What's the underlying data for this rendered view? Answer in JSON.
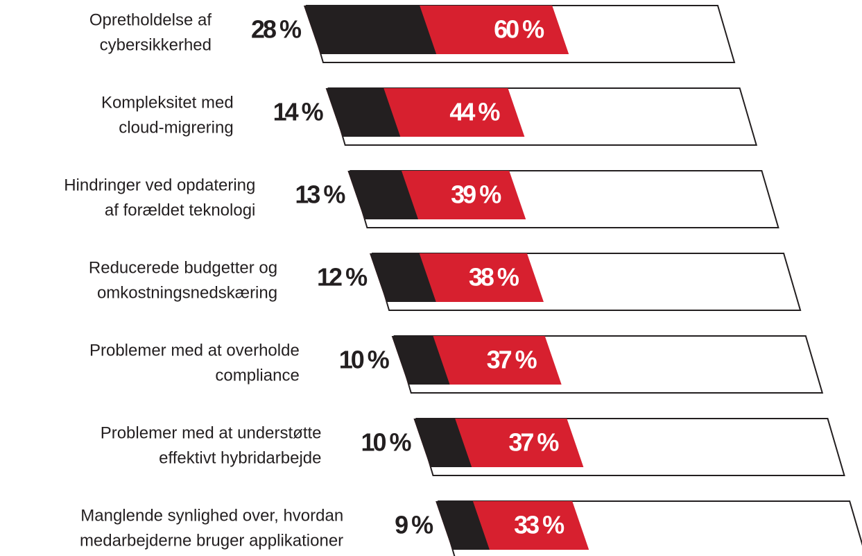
{
  "chart_data": {
    "type": "bar",
    "categories": [
      [
        "Opretholdelse af",
        "cybersikkerhed"
      ],
      [
        "Kompleksitet med",
        "cloud-migrering"
      ],
      [
        "Hindringer ved opdatering",
        "af forældet teknologi"
      ],
      [
        "Reducerede budgetter og",
        "omkostningsnedskæring"
      ],
      [
        "Problemer med at overholde",
        "compliance"
      ],
      [
        "Problemer med at understøtte",
        "effektivt hybridarbejde"
      ],
      [
        "Manglende synlighed over, hvordan",
        "medarbejderne bruger applikationer"
      ]
    ],
    "series": [
      {
        "color": "#d7202f",
        "values": [
          60,
          44,
          39,
          38,
          37,
          37,
          33
        ],
        "value_labels": [
          "60 %",
          "44 %",
          "39 %",
          "38 %",
          "37 %",
          "37 %",
          "33 %"
        ]
      },
      {
        "color": "#231f20",
        "values": [
          28,
          14,
          13,
          12,
          10,
          10,
          9
        ],
        "value_labels": [
          "28 %",
          "14 %",
          "13 %",
          "12 %",
          "10 %",
          "10 %",
          "9 %"
        ]
      }
    ],
    "xlim": [
      0,
      100
    ]
  }
}
